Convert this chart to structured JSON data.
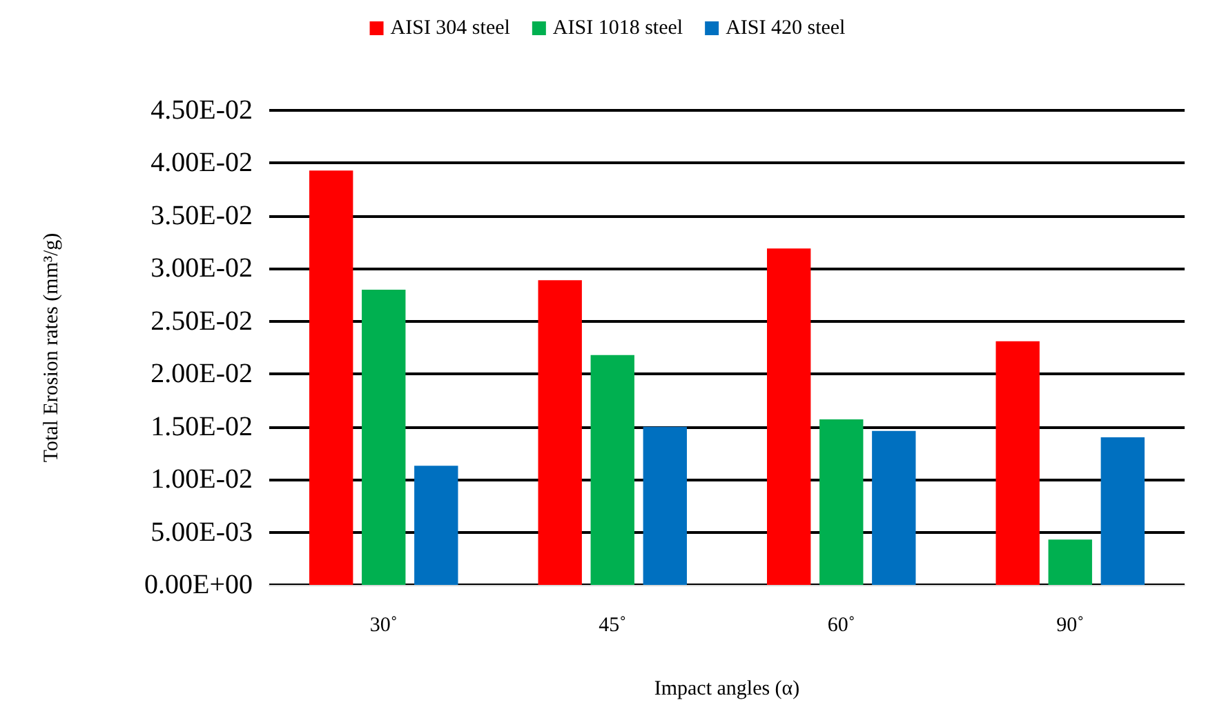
{
  "chart_data": {
    "type": "bar",
    "xlabel": "Impact angles (α)",
    "ylabel": "Total Erosion rates (mm³/g)",
    "categories": [
      "30˚",
      "45˚",
      "60˚",
      "90˚"
    ],
    "series": [
      {
        "name": "AISI 304 steel",
        "color": "#ff0000",
        "values": [
          0.0393,
          0.0289,
          0.0319,
          0.0231
        ]
      },
      {
        "name": "AISI 1018 steel",
        "color": "#00b050",
        "values": [
          0.028,
          0.0218,
          0.0157,
          0.0043
        ]
      },
      {
        "name": "AISI 420 steel",
        "color": "#0070c0",
        "values": [
          0.0113,
          0.015,
          0.0146,
          0.014
        ]
      }
    ],
    "ylim": [
      0,
      0.045
    ],
    "yticks": [
      {
        "value": 0,
        "label": "0.00E+00"
      },
      {
        "value": 0.005,
        "label": "5.00E-03"
      },
      {
        "value": 0.01,
        "label": "1.00E-02"
      },
      {
        "value": 0.015,
        "label": "1.50E-02"
      },
      {
        "value": 0.02,
        "label": "2.00E-02"
      },
      {
        "value": 0.025,
        "label": "2.50E-02"
      },
      {
        "value": 0.03,
        "label": "3.00E-02"
      },
      {
        "value": 0.035,
        "label": "3.50E-02"
      },
      {
        "value": 0.04,
        "label": "4.00E-02"
      },
      {
        "value": 0.045,
        "label": "4.50E-02"
      }
    ],
    "grid": "y",
    "legend": "top"
  }
}
